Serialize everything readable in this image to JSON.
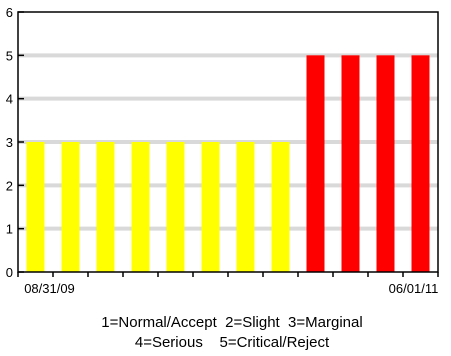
{
  "chart_data": {
    "type": "bar",
    "categories": [
      "",
      "",
      "",
      "",
      "",
      "",
      "",
      "",
      "",
      "",
      "",
      ""
    ],
    "values": [
      3,
      3,
      3,
      3,
      3,
      3,
      3,
      3,
      5,
      5,
      5,
      5
    ],
    "bar_colors": [
      "#ffff00",
      "#ffff00",
      "#ffff00",
      "#ffff00",
      "#ffff00",
      "#ffff00",
      "#ffff00",
      "#ffff00",
      "#ff0000",
      "#ff0000",
      "#ff0000",
      "#ff0000"
    ],
    "ylim": [
      0,
      6
    ],
    "yticks": [
      "0",
      "1",
      "2",
      "3",
      "4",
      "5",
      "6"
    ],
    "grid": true,
    "grid_color": "#d9d9d9",
    "x_start_label": "08/31/09",
    "x_end_label": "06/01/11",
    "legend_line1": "1=Normal/Accept  2=Slight  3=Marginal",
    "legend_line2": "4=Serious    5=Critical/Reject",
    "title": "",
    "xlabel": "",
    "ylabel": ""
  }
}
